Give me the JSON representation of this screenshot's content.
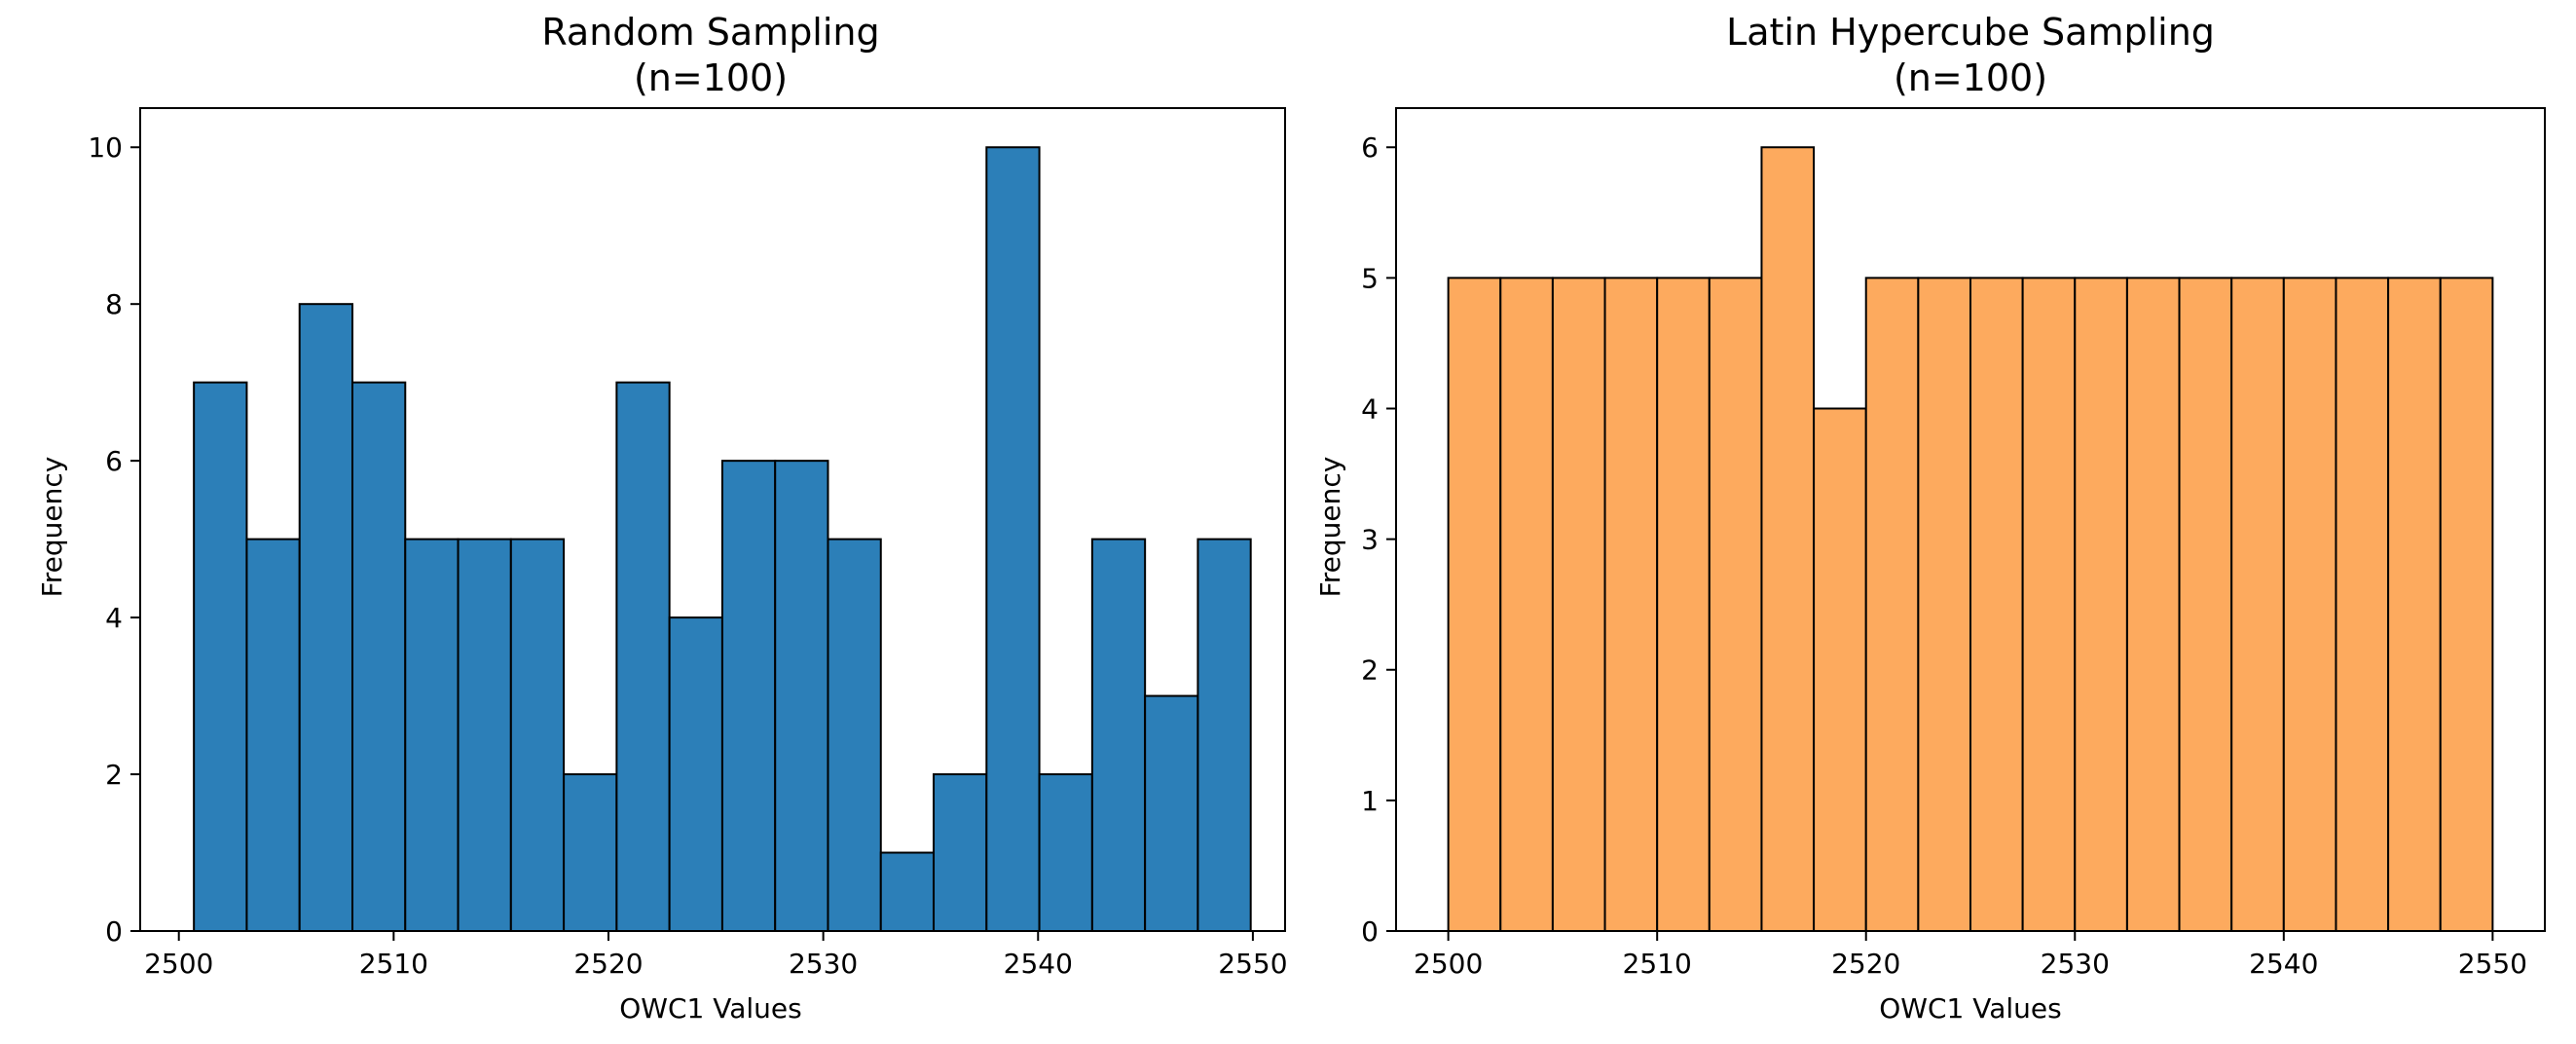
{
  "chart_data": [
    {
      "type": "bar",
      "title_line1": "Random Sampling",
      "title_line2": "(n=100)",
      "xlabel": "OWC1 Values",
      "ylabel": "Frequency",
      "xlim": [
        2498.2,
        2551.5
      ],
      "ylim": [
        0,
        10.5
      ],
      "xticks": [
        2500,
        2510,
        2520,
        2530,
        2540,
        2550
      ],
      "yticks": [
        0,
        2,
        4,
        6,
        8,
        10
      ],
      "bin_start": 2500.7,
      "bin_width": 2.46,
      "values": [
        7,
        5,
        8,
        7,
        5,
        5,
        5,
        2,
        7,
        4,
        6,
        6,
        5,
        1,
        2,
        10,
        2,
        5,
        3,
        5
      ],
      "color": "#2c7fb8",
      "edge_color": "#000000"
    },
    {
      "type": "bar",
      "title_line1": "Latin Hypercube Sampling",
      "title_line2": "(n=100)",
      "xlabel": "OWC1 Values",
      "ylabel": "Frequency",
      "xlim": [
        2497.5,
        2552.5
      ],
      "ylim": [
        0,
        6.3
      ],
      "xticks": [
        2500,
        2510,
        2520,
        2530,
        2540,
        2550
      ],
      "yticks": [
        0,
        1,
        2,
        3,
        4,
        5,
        6
      ],
      "bin_start": 2500,
      "bin_width": 2.5,
      "values": [
        5,
        5,
        5,
        5,
        5,
        5,
        6,
        4,
        5,
        5,
        5,
        5,
        5,
        5,
        5,
        5,
        5,
        5,
        5,
        5
      ],
      "color": "#fdaa5e",
      "edge_color": "#000000"
    }
  ]
}
